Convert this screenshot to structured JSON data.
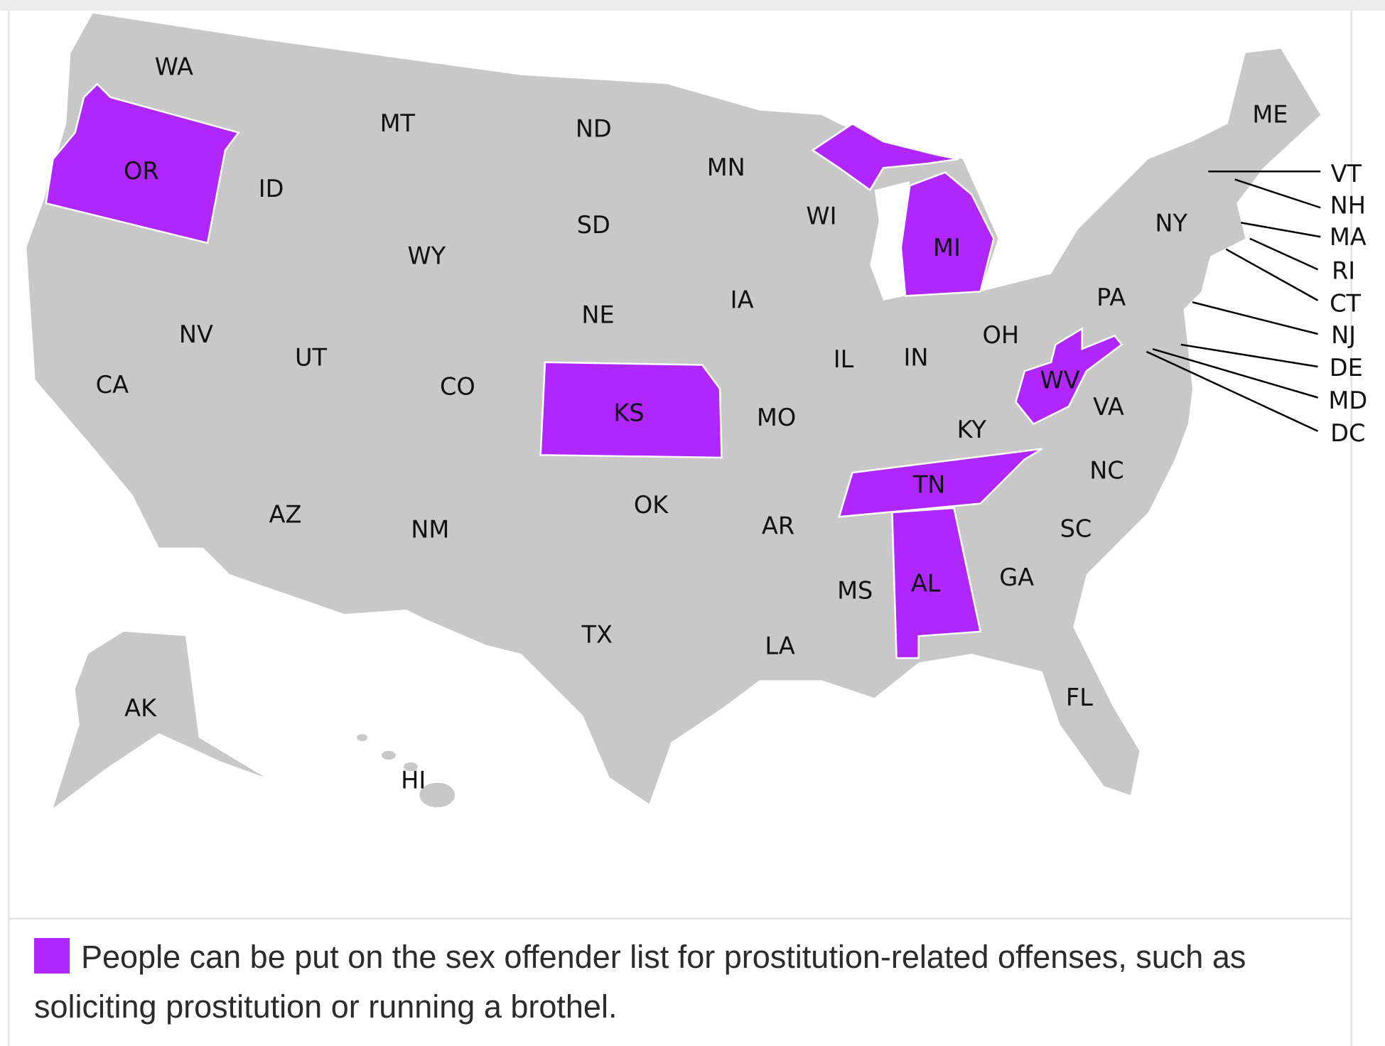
{
  "map": {
    "states": [
      {
        "label": "WA",
        "color": "#c8c8c8"
      },
      {
        "label": "OR",
        "color": "#b026ff"
      },
      {
        "label": "CA",
        "color": "#c8c8c8"
      },
      {
        "label": "NV",
        "color": "#c8c8c8"
      },
      {
        "label": "ID",
        "color": "#c8c8c8"
      },
      {
        "label": "MT",
        "color": "#c8c8c8"
      },
      {
        "label": "WY",
        "color": "#c8c8c8"
      },
      {
        "label": "UT",
        "color": "#c8c8c8"
      },
      {
        "label": "AZ",
        "color": "#c8c8c8"
      },
      {
        "label": "CO",
        "color": "#c8c8c8"
      },
      {
        "label": "NM",
        "color": "#c8c8c8"
      },
      {
        "label": "ND",
        "color": "#c8c8c8"
      },
      {
        "label": "SD",
        "color": "#c8c8c8"
      },
      {
        "label": "NE",
        "color": "#c8c8c8"
      },
      {
        "label": "KS",
        "color": "#b026ff"
      },
      {
        "label": "OK",
        "color": "#c8c8c8"
      },
      {
        "label": "TX",
        "color": "#c8c8c8"
      },
      {
        "label": "MN",
        "color": "#c8c8c8"
      },
      {
        "label": "IA",
        "color": "#c8c8c8"
      },
      {
        "label": "MO",
        "color": "#c8c8c8"
      },
      {
        "label": "AR",
        "color": "#c8c8c8"
      },
      {
        "label": "LA",
        "color": "#c8c8c8"
      },
      {
        "label": "WI",
        "color": "#c8c8c8"
      },
      {
        "label": "IL",
        "color": "#c8c8c8"
      },
      {
        "label": "MI",
        "color": "#b026ff"
      },
      {
        "label": "IN",
        "color": "#c8c8c8"
      },
      {
        "label": "OH",
        "color": "#c8c8c8"
      },
      {
        "label": "KY",
        "color": "#c8c8c8"
      },
      {
        "label": "TN",
        "color": "#b026ff"
      },
      {
        "label": "MS",
        "color": "#c8c8c8"
      },
      {
        "label": "AL",
        "color": "#b026ff"
      },
      {
        "label": "GA",
        "color": "#c8c8c8"
      },
      {
        "label": "FL",
        "color": "#c8c8c8"
      },
      {
        "label": "SC",
        "color": "#c8c8c8"
      },
      {
        "label": "NC",
        "color": "#c8c8c8"
      },
      {
        "label": "VA",
        "color": "#c8c8c8"
      },
      {
        "label": "WV",
        "color": "#b026ff"
      },
      {
        "label": "PA",
        "color": "#c8c8c8"
      },
      {
        "label": "NY",
        "color": "#c8c8c8"
      },
      {
        "label": "ME",
        "color": "#c8c8c8"
      },
      {
        "label": "VT",
        "color": "#c8c8c8"
      },
      {
        "label": "NH",
        "color": "#c8c8c8"
      },
      {
        "label": "MA",
        "color": "#c8c8c8"
      },
      {
        "label": "RI",
        "color": "#c8c8c8"
      },
      {
        "label": "CT",
        "color": "#c8c8c8"
      },
      {
        "label": "NJ",
        "color": "#c8c8c8"
      },
      {
        "label": "DE",
        "color": "#c8c8c8"
      },
      {
        "label": "MD",
        "color": "#c8c8c8"
      },
      {
        "label": "DC",
        "color": "#c8c8c8"
      },
      {
        "label": "AK",
        "color": "#c8c8c8"
      },
      {
        "label": "HI",
        "color": "#c8c8c8"
      }
    ],
    "legend": {
      "color": "#b026ff",
      "text": "People can be put on the sex offender list for prostitution-related offenses, such as soliciting prostitution or running a brothel."
    }
  }
}
